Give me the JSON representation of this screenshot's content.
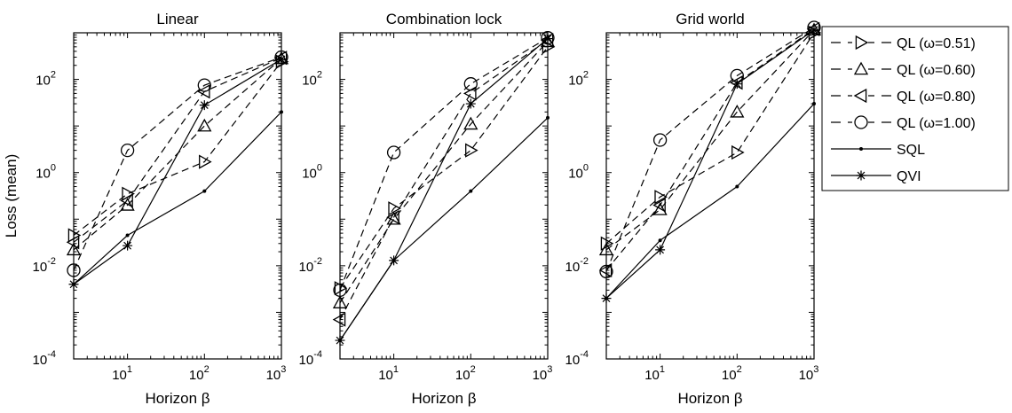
{
  "chart_data": [
    {
      "type": "line",
      "title": "Linear",
      "xlabel": "Horizon β",
      "ylabel": "Loss (mean)",
      "xscale": "log",
      "yscale": "log",
      "xlim": [
        2,
        1000
      ],
      "ylim": [
        0.0001,
        1000
      ],
      "x": [
        2,
        10,
        100,
        1000
      ],
      "series": [
        {
          "name": "QL (ω=0.51)",
          "values": [
            0.045,
            0.35,
            1.7,
            240
          ]
        },
        {
          "name": "QL (ω=0.60)",
          "values": [
            0.022,
            0.2,
            10,
            280
          ]
        },
        {
          "name": "QL (ω=0.80)",
          "values": [
            0.032,
            0.25,
            55,
            290
          ]
        },
        {
          "name": "QL (ω=1.00)",
          "values": [
            0.008,
            3.0,
            75,
            300
          ]
        },
        {
          "name": "SQL",
          "values": [
            0.004,
            0.045,
            0.4,
            20
          ]
        },
        {
          "name": "QVI",
          "values": [
            0.004,
            0.027,
            28,
            270
          ]
        }
      ]
    },
    {
      "type": "line",
      "title": "Combination lock",
      "xlabel": "Horizon β",
      "ylabel": "",
      "xscale": "log",
      "yscale": "log",
      "xlim": [
        2,
        1000
      ],
      "ylim": [
        0.0001,
        1000
      ],
      "x": [
        2,
        10,
        100,
        1000
      ],
      "series": [
        {
          "name": "QL (ω=0.51)",
          "values": [
            0.0033,
            0.17,
            3.0,
            500
          ]
        },
        {
          "name": "QL (ω=0.60)",
          "values": [
            0.0016,
            0.1,
            11,
            650
          ]
        },
        {
          "name": "QL (ω=0.80)",
          "values": [
            0.0007,
            0.11,
            50,
            700
          ]
        },
        {
          "name": "QL (ω=1.00)",
          "values": [
            0.003,
            2.7,
            80,
            780
          ]
        },
        {
          "name": "SQL",
          "values": [
            0.00025,
            0.013,
            0.4,
            15
          ]
        },
        {
          "name": "QVI",
          "values": [
            0.00025,
            0.013,
            30,
            750
          ]
        }
      ]
    },
    {
      "type": "line",
      "title": "Grid world",
      "xlabel": "Horizon β",
      "ylabel": "",
      "xscale": "log",
      "yscale": "log",
      "xlim": [
        2,
        1000
      ],
      "ylim": [
        0.0001,
        1000
      ],
      "x": [
        2,
        10,
        100,
        1000
      ],
      "series": [
        {
          "name": "QL (ω=0.51)",
          "values": [
            0.03,
            0.3,
            2.7,
            1000
          ]
        },
        {
          "name": "QL (ω=0.60)",
          "values": [
            0.022,
            0.16,
            20,
            1150
          ]
        },
        {
          "name": "QL (ω=0.80)",
          "values": [
            0.008,
            0.2,
            85,
            1200
          ]
        },
        {
          "name": "QL (ω=1.00)",
          "values": [
            0.0075,
            5.0,
            120,
            1300
          ]
        },
        {
          "name": "SQL",
          "values": [
            0.002,
            0.035,
            0.5,
            30
          ]
        },
        {
          "name": "QVI",
          "values": [
            0.002,
            0.022,
            80,
            1150
          ]
        }
      ]
    }
  ],
  "legend": {
    "placement": "right",
    "entries": [
      {
        "label": "QL (ω=0.51)",
        "marker": "triangle-right",
        "dash": "dashed"
      },
      {
        "label": "QL (ω=0.60)",
        "marker": "triangle-up",
        "dash": "dashed"
      },
      {
        "label": "QL (ω=0.80)",
        "marker": "triangle-left",
        "dash": "dashed"
      },
      {
        "label": "QL (ω=1.00)",
        "marker": "circle",
        "dash": "dashed"
      },
      {
        "label": "SQL",
        "marker": "dot",
        "dash": "solid"
      },
      {
        "label": "QVI",
        "marker": "asterisk",
        "dash": "solid"
      }
    ]
  },
  "style": {
    "line_color": "#000000",
    "background": "#ffffff"
  }
}
